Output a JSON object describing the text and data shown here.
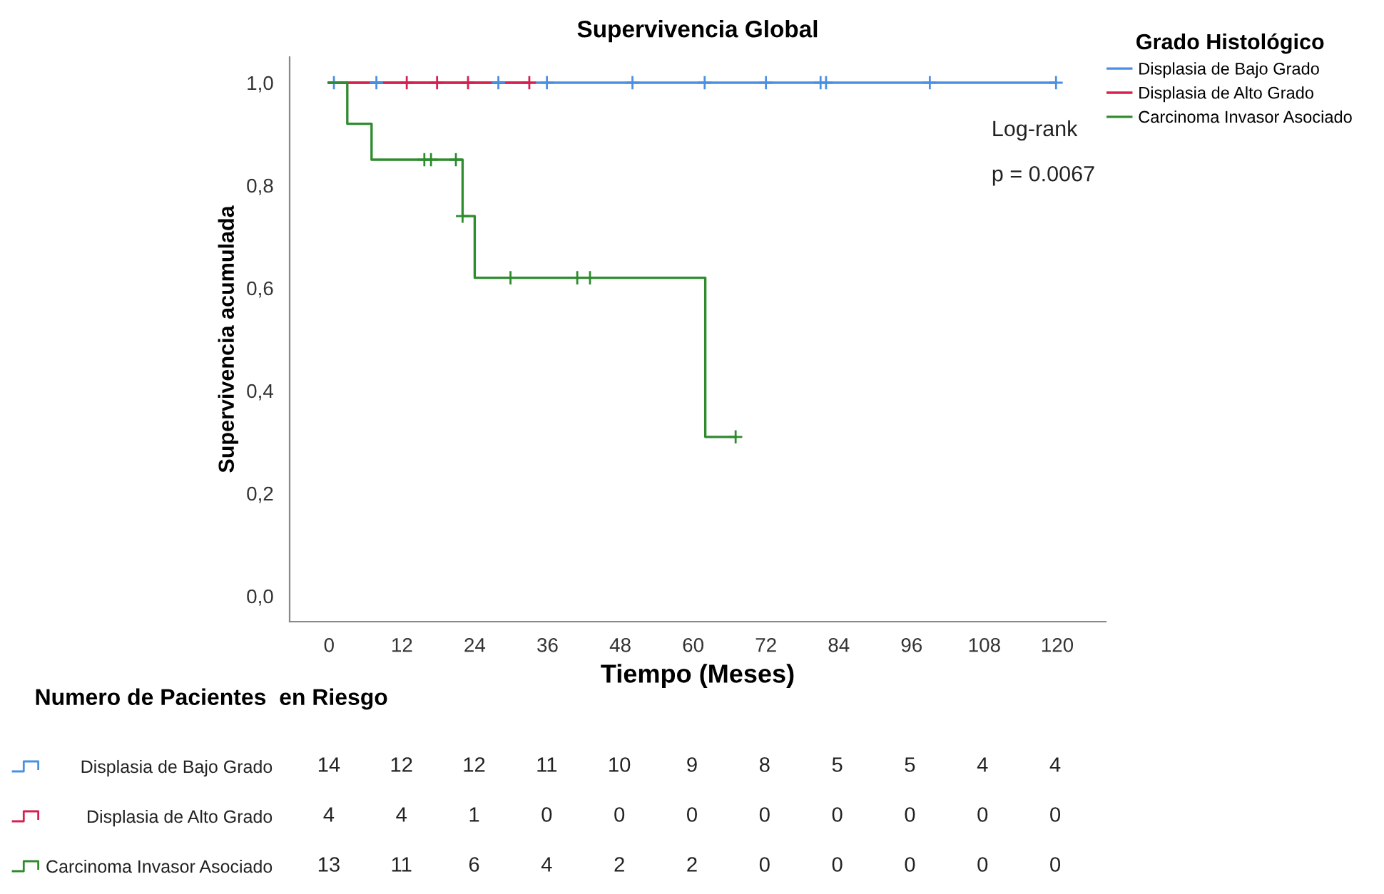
{
  "chart_data": [
    {
      "type": "step",
      "title": "Supervivencia Global",
      "xlabel": "Tiempo (Meses)",
      "ylabel": "Supervivencia acumulada",
      "legend_title": "Grado Histológico",
      "legend": "top right",
      "xlim": [
        -6.5,
        128
      ],
      "ylim": [
        -0.05,
        1.05
      ],
      "xticks": [
        0,
        12,
        24,
        36,
        48,
        60,
        72,
        84,
        96,
        108,
        120
      ],
      "yticks": [
        {
          "value": 0,
          "label": "0,0"
        },
        {
          "value": 0.2,
          "label": "0,2"
        },
        {
          "value": 0.4,
          "label": "0,4"
        },
        {
          "value": 0.6,
          "label": "0,6"
        },
        {
          "value": 0.8,
          "label": "0,8"
        },
        {
          "value": 1,
          "label": "1,0"
        }
      ],
      "grid": false,
      "series": [
        {
          "name": "Displasia de Bajo Grado",
          "color": "#4a90e2",
          "x": [
            0,
            119.8
          ],
          "values": [
            1.0,
            1.0
          ]
        },
        {
          "name": "Displasia de Alto Grado",
          "color": "#d6204e",
          "x": [
            0,
            33
          ],
          "values": [
            1.0,
            1.0
          ]
        },
        {
          "name": "Carcinoma Invasor Asociado",
          "color": "#2e8b2e",
          "x": [
            0,
            3,
            7,
            22,
            24,
            62,
            67
          ],
          "values": [
            1.0,
            0.92,
            0.85,
            0.74,
            0.62,
            0.31,
            0.31
          ]
        },
        {
          "type": "scatter",
          "marker": "cross",
          "color": "#4a90e2",
          "x": [
            0.8,
            7.8,
            27.9,
            35.9,
            50,
            61.9,
            72,
            81,
            81.9,
            99,
            119.8
          ],
          "values": [
            1,
            1,
            1,
            1,
            1,
            1,
            1,
            1,
            1,
            1,
            1
          ]
        },
        {
          "type": "scatter",
          "marker": "cross",
          "color": "#d6204e",
          "x": [
            12.8,
            17.8,
            22.9,
            33
          ],
          "values": [
            1,
            1,
            1,
            1
          ]
        },
        {
          "type": "scatter",
          "marker": "cross",
          "color": "#2e8b2e",
          "x": [
            15.7,
            16.8,
            20.9,
            22,
            29.9,
            40.9,
            43,
            67
          ],
          "values": [
            0.85,
            0.85,
            0.85,
            0.74,
            0.62,
            0.62,
            0.62,
            0.31
          ]
        }
      ],
      "annotations": [
        "Log-rank",
        "p = 0.0067"
      ]
    },
    {
      "type": "heatmap",
      "title": "Numero de Pacientes  en Riesgo",
      "data_labels": true,
      "categories": [
        null,
        null,
        null,
        null,
        null,
        null,
        null,
        null,
        null,
        null,
        null
      ],
      "y_categories": [
        "Displasia de Bajo Grado",
        "Displasia de Alto Grado",
        "Carcinoma Invasor Asociado"
      ],
      "colors": [
        "#4a90e2",
        "#d6204e",
        "#2e8b2e"
      ],
      "cells": [
        [
          14,
          12,
          12,
          11,
          10,
          9,
          8,
          5,
          5,
          4,
          4
        ],
        [
          4,
          4,
          1,
          0,
          0,
          0,
          0,
          0,
          0,
          0,
          0
        ],
        [
          13,
          11,
          6,
          4,
          2,
          2,
          0,
          0,
          0,
          0,
          0
        ]
      ]
    }
  ]
}
